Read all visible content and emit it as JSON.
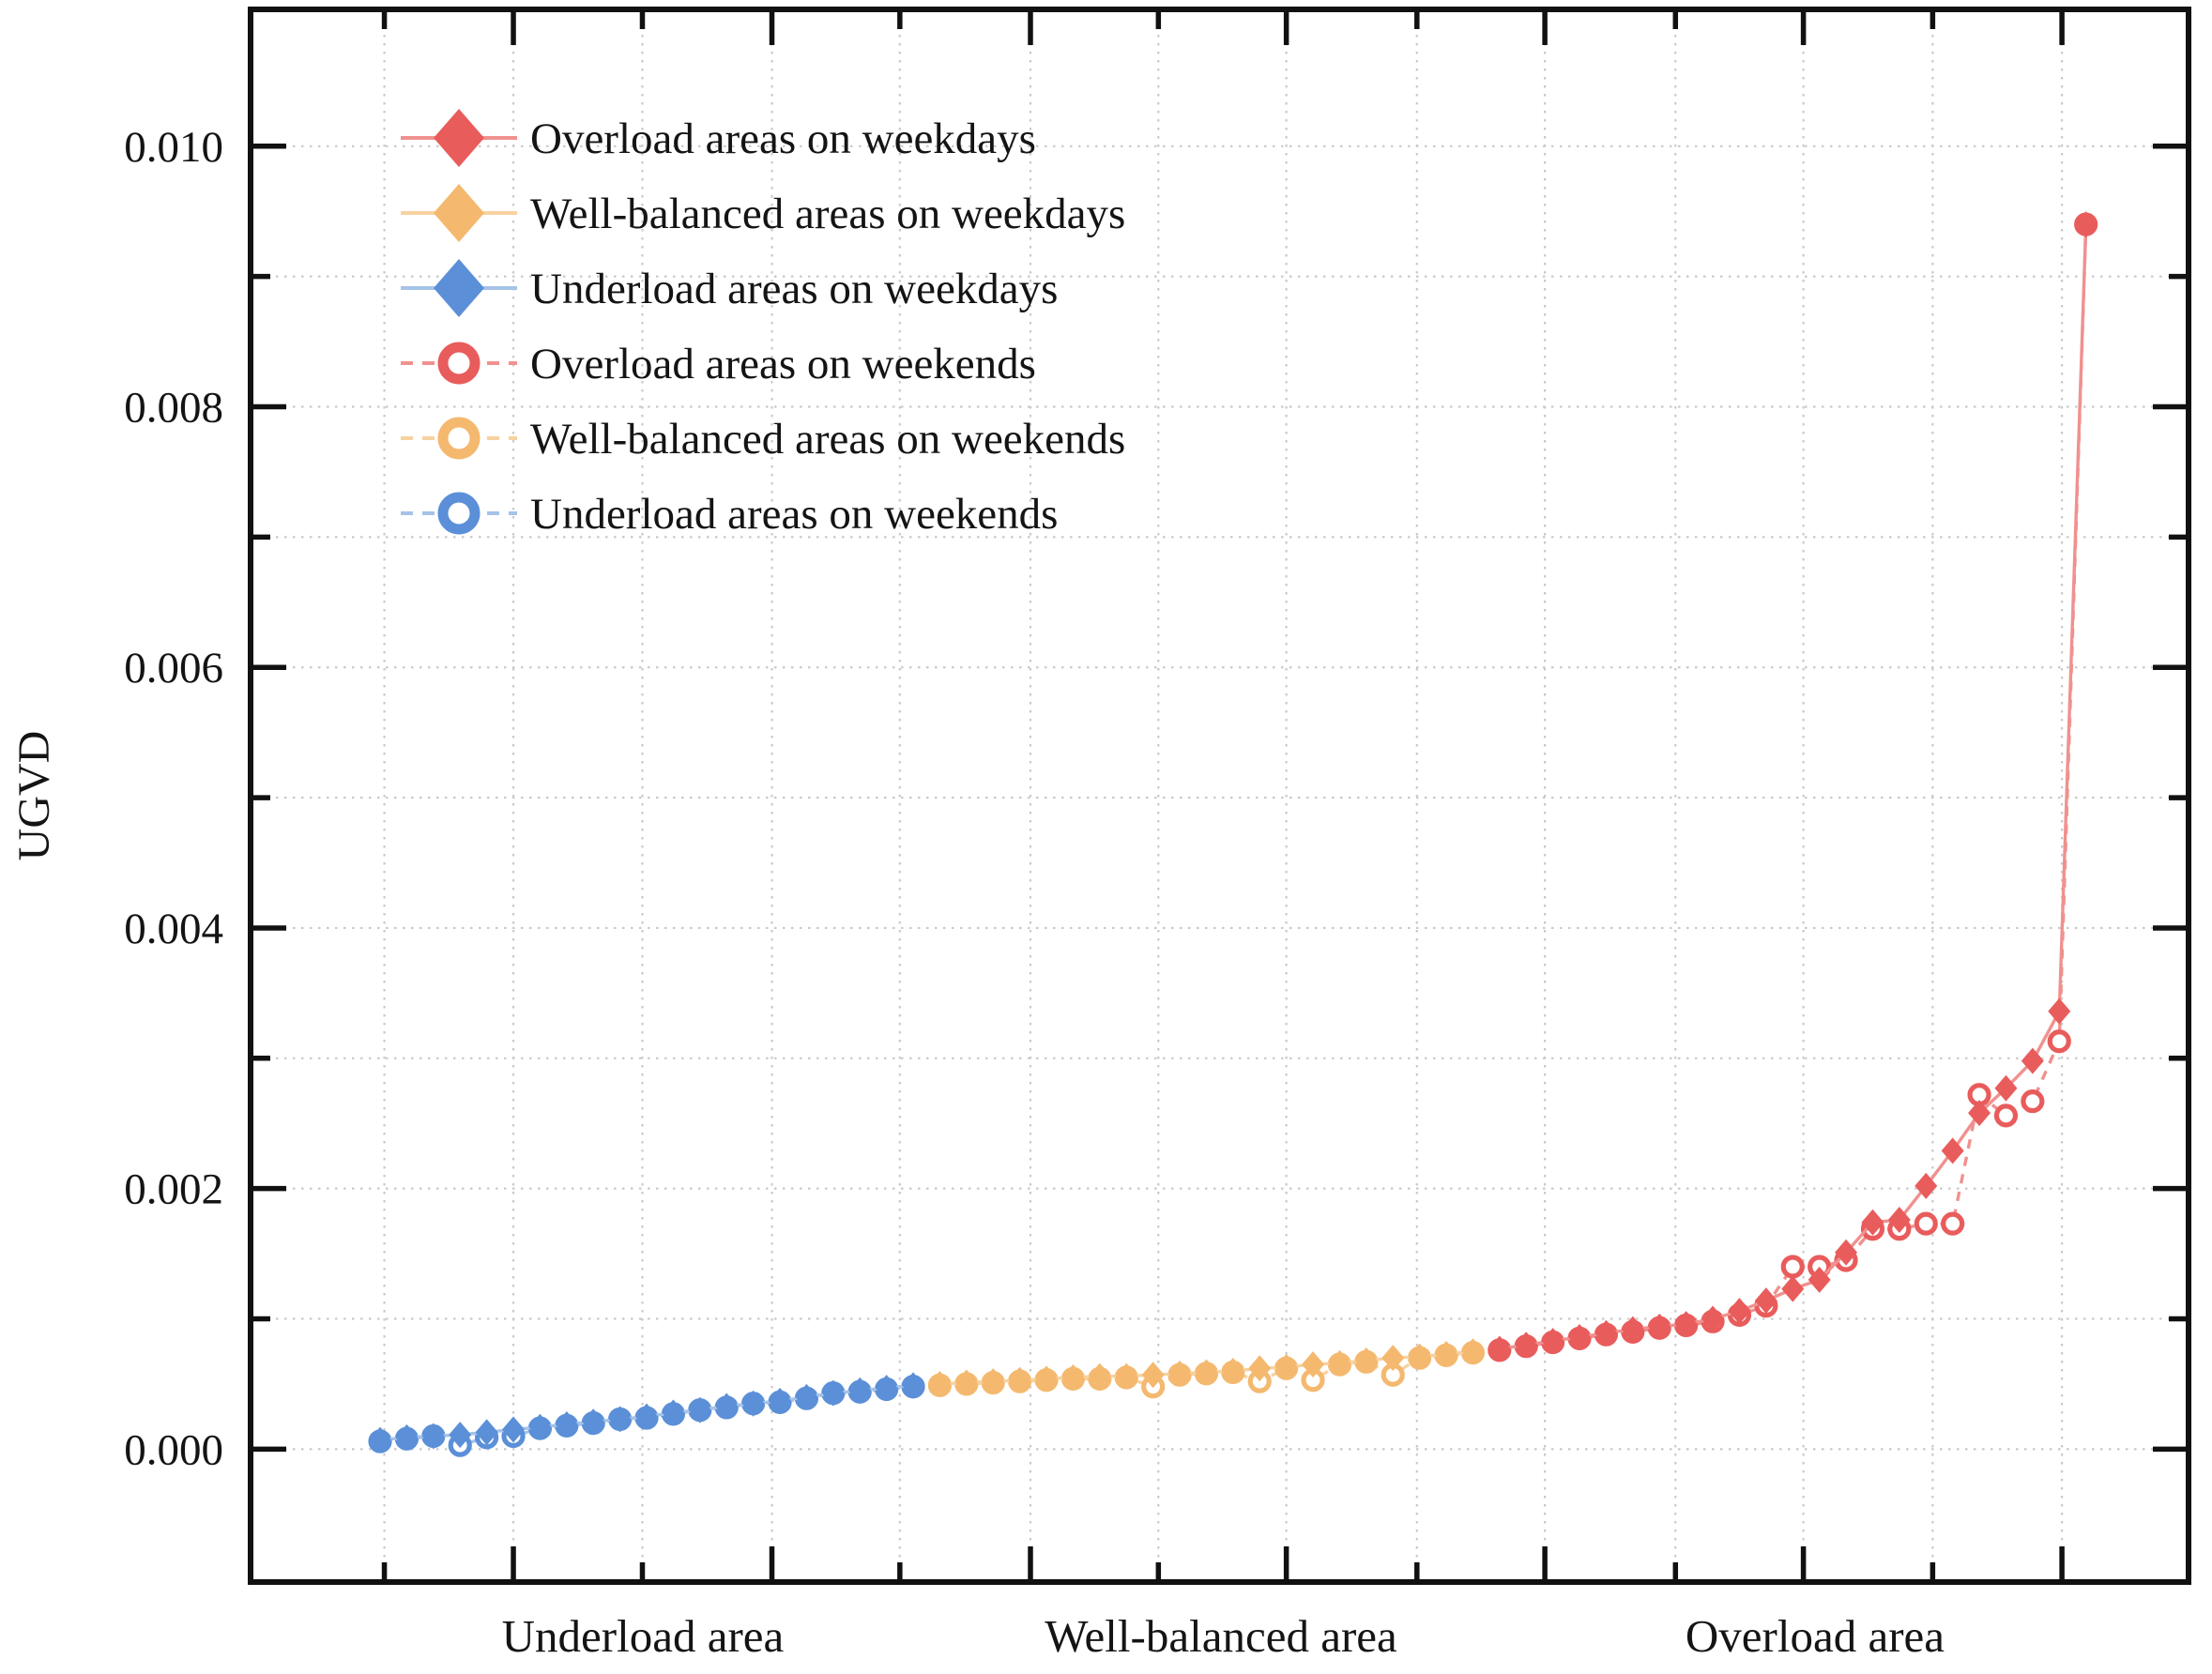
{
  "colors": {
    "background": "#ffffff",
    "frame": "#111111",
    "grid": "#c9c9c9",
    "text": "#141414",
    "red": "#E95C5C",
    "red_line": "#F0918F",
    "orange": "#F4B96F",
    "orange_line": "#F7D2A0",
    "blue": "#5B8FD8",
    "blue_line": "#A6C3E8"
  },
  "chart_data": {
    "type": "line",
    "title": "",
    "xlabel": "",
    "ylabel": "UGVD",
    "xlim": [
      -3.86,
      68.85
    ],
    "ylim": [
      -0.00102,
      0.01105
    ],
    "grid": "dotted, at every major and minor tick",
    "legend_position": "upper-left, no border",
    "ytick_major": [
      {
        "value": 0.0,
        "label": "0.000"
      },
      {
        "value": 0.002,
        "label": "0.002"
      },
      {
        "value": 0.004,
        "label": "0.004"
      },
      {
        "value": 0.006,
        "label": "0.006"
      },
      {
        "value": 0.008,
        "label": "0.008"
      },
      {
        "value": 0.01,
        "label": "0.010"
      }
    ],
    "ytick_minor": [
      0.001,
      0.003,
      0.005,
      0.007,
      0.009
    ],
    "xtick_major": [
      6.0,
      15.7,
      25.4,
      35.0,
      44.7,
      54.4,
      64.1
    ],
    "xtick_minor": [
      1.16,
      10.84,
      20.5,
      30.2,
      39.9,
      49.6,
      59.25
    ],
    "xcategories": [
      {
        "label": "Underload area",
        "x": 10.9
      },
      {
        "label": "Well-balanced area",
        "x": 32.55
      },
      {
        "label": "Overload area",
        "x": 54.8
      }
    ],
    "series": [
      {
        "name": "Overload areas on weekdays",
        "color": "#E95C5C",
        "line_color": "#F0918F",
        "marker": "diamond",
        "linestyle": "solid",
        "x": [
          43,
          44,
          45,
          46,
          47,
          48,
          49,
          50,
          51,
          52,
          53,
          54,
          55,
          56,
          57,
          58,
          59,
          60,
          61,
          62,
          63,
          64,
          65
        ],
        "y": [
          0.00077,
          0.0008,
          0.00083,
          0.00086,
          0.00089,
          0.00092,
          0.00094,
          0.00096,
          0.001,
          0.00106,
          0.00114,
          0.00123,
          0.0013,
          0.00151,
          0.00174,
          0.00176,
          0.00202,
          0.00229,
          0.00258,
          0.00277,
          0.00298,
          0.00336,
          0.0094
        ]
      },
      {
        "name": "Well-balanced areas on weekdays",
        "color": "#F4B96F",
        "line_color": "#F7D2A0",
        "marker": "diamond",
        "linestyle": "solid",
        "x": [
          22,
          23,
          24,
          25,
          26,
          27,
          28,
          29,
          30,
          31,
          32,
          33,
          34,
          35,
          36,
          37,
          38,
          39,
          40,
          41,
          42
        ],
        "y": [
          0.0005,
          0.00051,
          0.00052,
          0.00053,
          0.00054,
          0.00055,
          0.00056,
          0.00056,
          0.00057,
          0.00058,
          0.00059,
          0.0006,
          0.00062,
          0.00063,
          0.00065,
          0.00066,
          0.00068,
          0.0007,
          0.00071,
          0.00073,
          0.00075
        ]
      },
      {
        "name": "Underload areas on weekdays",
        "color": "#5B8FD8",
        "line_color": "#A6C3E8",
        "marker": "diamond",
        "linestyle": "solid",
        "x": [
          1,
          2,
          3,
          4,
          5,
          6,
          7,
          8,
          9,
          10,
          11,
          12,
          13,
          14,
          15,
          16,
          17,
          18,
          19,
          20,
          21
        ],
        "y": [
          7e-05,
          9e-05,
          0.0001,
          0.00011,
          0.00013,
          0.00015,
          0.00017,
          0.00019,
          0.00021,
          0.00023,
          0.00025,
          0.00028,
          0.0003,
          0.00033,
          0.00035,
          0.00037,
          0.0004,
          0.00043,
          0.00045,
          0.00047,
          0.00049
        ]
      },
      {
        "name": "Overload areas on weekends",
        "color": "#E95C5C",
        "line_color": "#F0918F",
        "marker": "circle",
        "linestyle": "dashed",
        "x": [
          43,
          44,
          45,
          46,
          47,
          48,
          49,
          50,
          51,
          52,
          53,
          54,
          55,
          56,
          57,
          58,
          59,
          60,
          61,
          62,
          63,
          64,
          65
        ],
        "y": [
          0.00076,
          0.00079,
          0.00082,
          0.00085,
          0.00088,
          0.0009,
          0.00093,
          0.00095,
          0.00098,
          0.00103,
          0.0011,
          0.0014,
          0.0014,
          0.00145,
          0.00169,
          0.00169,
          0.00173,
          0.00173,
          0.00272,
          0.00256,
          0.00267,
          0.00313,
          0.0094
        ]
      },
      {
        "name": "Well-balanced areas on weekends",
        "color": "#F4B96F",
        "line_color": "#F7D2A0",
        "marker": "circle",
        "linestyle": "dashed",
        "x": [
          22,
          23,
          24,
          25,
          26,
          27,
          28,
          29,
          30,
          31,
          32,
          33,
          34,
          35,
          36,
          37,
          38,
          39,
          40,
          41,
          42
        ],
        "y": [
          0.00049,
          0.0005,
          0.00051,
          0.00052,
          0.00053,
          0.00054,
          0.00054,
          0.00055,
          0.00048,
          0.00057,
          0.00058,
          0.00059,
          0.00052,
          0.00062,
          0.00053,
          0.00065,
          0.00067,
          0.00057,
          0.0007,
          0.00072,
          0.00074
        ]
      },
      {
        "name": "Underload areas on weekends",
        "color": "#5B8FD8",
        "line_color": "#A6C3E8",
        "marker": "circle",
        "linestyle": "dashed",
        "x": [
          1,
          2,
          3,
          4,
          5,
          6,
          7,
          8,
          9,
          10,
          11,
          12,
          13,
          14,
          15,
          16,
          17,
          18,
          19,
          20,
          21
        ],
        "y": [
          6e-05,
          8e-05,
          0.0001,
          3e-05,
          9e-05,
          0.0001,
          0.00016,
          0.00018,
          0.0002,
          0.00023,
          0.00024,
          0.00027,
          0.0003,
          0.00032,
          0.00035,
          0.00036,
          0.00039,
          0.00043,
          0.00044,
          0.00046,
          0.00048
        ]
      }
    ]
  }
}
